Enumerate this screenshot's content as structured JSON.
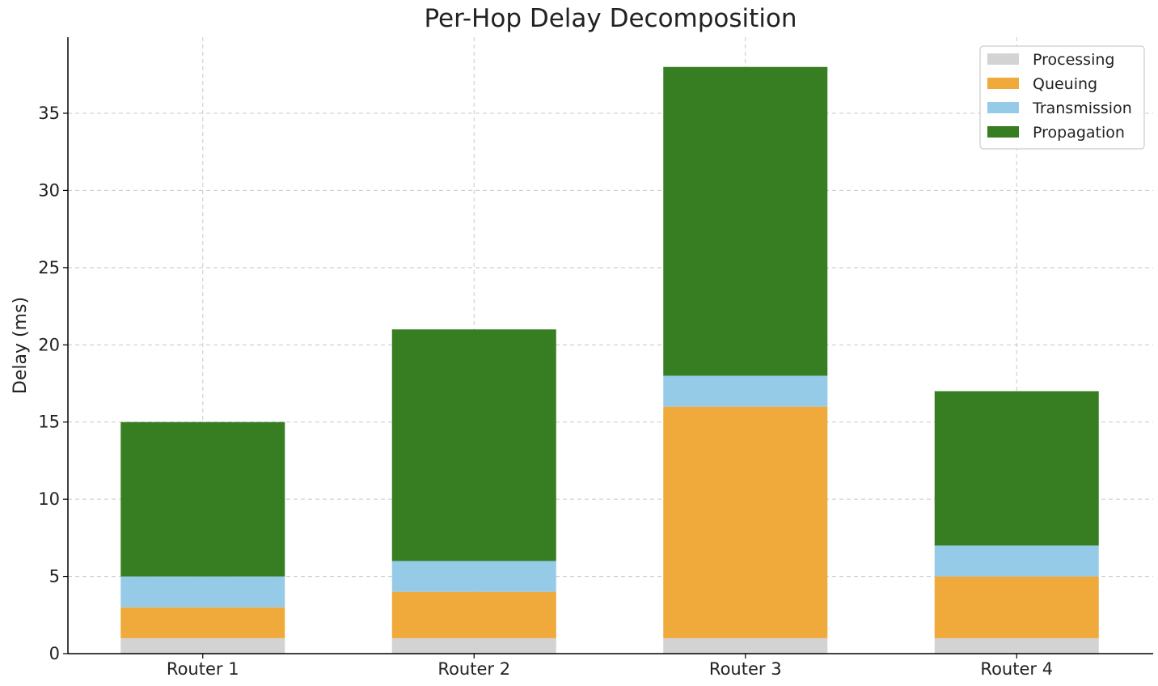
{
  "chart_data": {
    "type": "bar",
    "stacked": true,
    "title": "Per-Hop Delay Decomposition",
    "xlabel": "",
    "ylabel": "Delay (ms)",
    "categories": [
      "Router 1",
      "Router 2",
      "Router 3",
      "Router 4"
    ],
    "series": [
      {
        "name": "Processing",
        "color": "#d3d3d3",
        "values": [
          1,
          1,
          1,
          1
        ]
      },
      {
        "name": "Queuing",
        "color": "#f0a93b",
        "values": [
          2,
          3,
          15,
          4
        ]
      },
      {
        "name": "Transmission",
        "color": "#96cbe8",
        "values": [
          2,
          2,
          2,
          2
        ]
      },
      {
        "name": "Propagation",
        "color": "#377e22",
        "values": [
          10,
          15,
          20,
          10
        ]
      }
    ],
    "ylim": [
      0,
      40
    ],
    "yticks": [
      0,
      5,
      10,
      15,
      20,
      25,
      30,
      35
    ],
    "grid": true,
    "legend": "top-right"
  }
}
